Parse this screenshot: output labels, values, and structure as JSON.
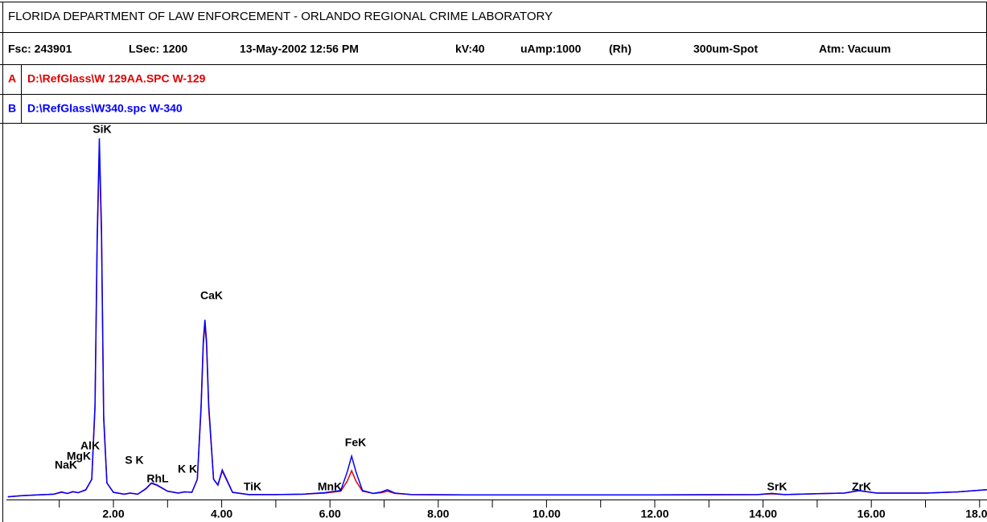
{
  "chart_data": {
    "type": "line",
    "title": "FLORIDA DEPARTMENT OF LAW ENFORCEMENT - ORLANDO REGIONAL CRIME LABORATORY",
    "info": [
      "Fsc: 243901",
      "LSec: 1200",
      "13-May-2002 12:56 PM",
      "kV:40",
      "uAmp:1000",
      "(Rh)",
      "300um-Spot",
      "Atm: Vacuum"
    ],
    "x": [
      0.05,
      0.3,
      0.6,
      0.9,
      1.04,
      1.15,
      1.25,
      1.35,
      1.49,
      1.6,
      1.66,
      1.7,
      1.74,
      1.78,
      1.82,
      1.88,
      2.0,
      2.2,
      2.31,
      2.45,
      2.6,
      2.7,
      2.8,
      3.0,
      3.2,
      3.31,
      3.45,
      3.55,
      3.62,
      3.66,
      3.69,
      3.72,
      3.76,
      3.85,
      3.93,
      4.01,
      4.09,
      4.2,
      4.5,
      5.0,
      5.5,
      5.9,
      6.2,
      6.32,
      6.4,
      6.48,
      6.6,
      6.8,
      6.95,
      7.06,
      7.2,
      7.5,
      8.5,
      10,
      12,
      13.9,
      14.16,
      14.4,
      15.5,
      15.77,
      16.1,
      17,
      17.6,
      18.14
    ],
    "series": [
      {
        "key": "A",
        "name": "D:\\RefGlass\\W 129AA.SPC  W-129",
        "color": "#e00000",
        "values": [
          0.3,
          0.6,
          0.8,
          1.0,
          1.5,
          1.2,
          1.6,
          1.4,
          2.1,
          5,
          24,
          68,
          93.5,
          70,
          21,
          4,
          1.5,
          1.0,
          1.3,
          1.0,
          2.4,
          3.9,
          3.4,
          1.8,
          1.3,
          1.6,
          1.5,
          5,
          24,
          41,
          46.5,
          41,
          24,
          5,
          3.4,
          7.2,
          4.8,
          1.5,
          0.9,
          0.9,
          1.0,
          1.3,
          1.8,
          4.5,
          7.3,
          4.5,
          1.8,
          1.2,
          1.4,
          1.8,
          1.2,
          0.9,
          0.8,
          0.8,
          0.8,
          0.9,
          1.1,
          0.9,
          1.3,
          1.9,
          1.3,
          1.3,
          1.6,
          2.2
        ]
      },
      {
        "key": "B",
        "name": "D:\\RefGlass\\W340.spc  W-340",
        "color": "#0000ff",
        "values": [
          0.3,
          0.6,
          0.8,
          1.0,
          1.6,
          1.2,
          1.7,
          1.4,
          2.2,
          5,
          25,
          70,
          96.3,
          72,
          22,
          4,
          1.5,
          1.0,
          1.3,
          1.0,
          2.5,
          4.0,
          3.5,
          1.8,
          1.3,
          1.6,
          1.5,
          5,
          25,
          42,
          47.7,
          42,
          25,
          5,
          3.5,
          7.5,
          5,
          1.5,
          0.9,
          0.9,
          1.0,
          1.4,
          2,
          7,
          11.2,
          7,
          2,
          1.2,
          1.6,
          2.2,
          1.3,
          0.9,
          0.8,
          0.8,
          0.8,
          0.9,
          1.2,
          0.9,
          1.3,
          2.0,
          1.3,
          1.3,
          1.6,
          2.2
        ]
      }
    ],
    "annotations": [
      "SiK",
      "CaK",
      "S K",
      "AlK",
      "MgK",
      "NaK",
      "RhL",
      "K K",
      "TiK",
      "MnK",
      "FeK",
      "SrK",
      "ZrK"
    ],
    "xlim": [
      0.02,
      18.14
    ],
    "ylim": [
      0,
      100
    ],
    "xticks": [
      {
        "value": 2,
        "label": "2.00"
      },
      {
        "value": 4,
        "label": "4.00"
      },
      {
        "value": 6,
        "label": "6.00"
      },
      {
        "value": 8,
        "label": "8.00"
      },
      {
        "value": 10,
        "label": "10.00"
      },
      {
        "value": 12,
        "label": "12.00"
      },
      {
        "value": 14,
        "label": "14.00"
      },
      {
        "value": 16,
        "label": "16.00"
      },
      {
        "value": 18,
        "label": "18.00"
      }
    ],
    "xminorticks": [
      1,
      3,
      5,
      7,
      9,
      11,
      13,
      15,
      17
    ]
  }
}
